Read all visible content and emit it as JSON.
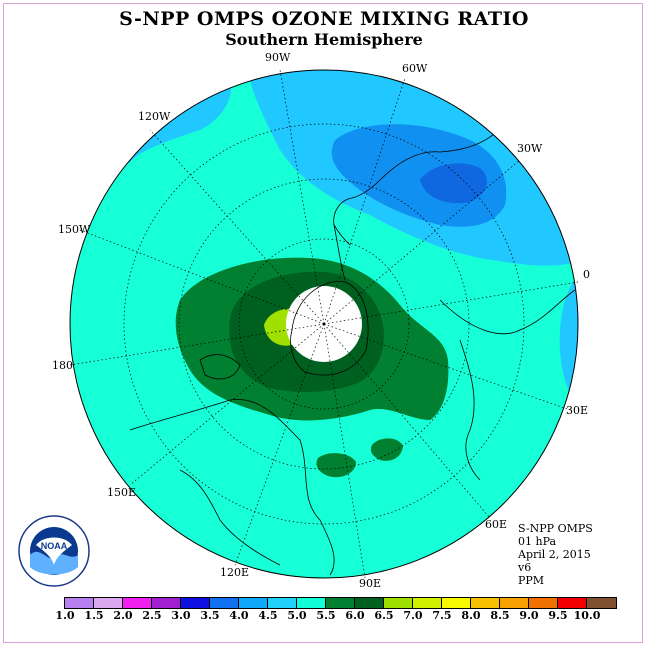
{
  "title": "S-NPP OMPS OZONE MIXING RATIO",
  "subtitle": "Southern Hemisphere",
  "longitude_labels": [
    "90W",
    "60W",
    "120W",
    "30W",
    "150W",
    "0",
    "180",
    "30E",
    "150E",
    "60E",
    "120E",
    "90E"
  ],
  "info": {
    "instrument": "S-NPP OMPS",
    "level": "01 hPa",
    "date": "April 2, 2015",
    "version": "v6",
    "units": "PPM"
  },
  "logo_text": "NOAA",
  "colorbar": {
    "ticks": [
      "1.0",
      "1.5",
      "2.0",
      "2.5",
      "3.0",
      "3.5",
      "4.0",
      "4.5",
      "5.0",
      "5.5",
      "6.0",
      "6.5",
      "7.0",
      "7.5",
      "8.0",
      "8.5",
      "9.0",
      "9.5",
      "10.0"
    ],
    "colors": [
      "#b77ff0",
      "#dba8f0",
      "#f020f0",
      "#a020d0",
      "#1010e0",
      "#1070f0",
      "#10a8f8",
      "#20d0f8",
      "#10ffd8",
      "#008030",
      "#006020",
      "#a0e000",
      "#d0f000",
      "#f8f800",
      "#f8c000",
      "#f8a000",
      "#f07000",
      "#f00000",
      "#805030"
    ]
  },
  "colors": {
    "ocean_field": "#17ffd6",
    "low_band": "#20c8ff",
    "lower_band": "#1090f0",
    "lowest_band": "#1068e0",
    "high_band": "#008030",
    "higher_band": "#006020",
    "peak_band": "#a0e000",
    "missing": "#ffffff"
  }
}
